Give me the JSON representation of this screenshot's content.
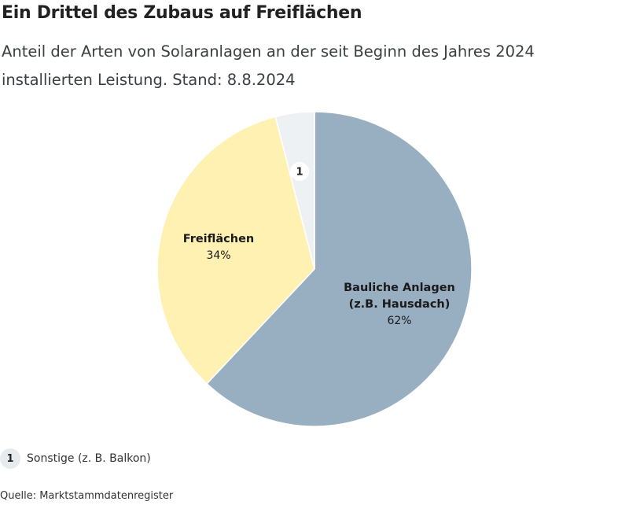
{
  "title": "Ein Drittel des Zubaus auf Freiflächen",
  "subtitle": {
    "line1": "Anteil der Arten von Solaranlagen an der seit Beginn des Jahres 2024",
    "line2": "installierten Leistung. Stand: 8.8.2024"
  },
  "chart_data": {
    "type": "pie",
    "slices": [
      {
        "key": "bauliche",
        "label_lines": [
          "Bauliche Anlagen",
          "(z.B. Hausdach)"
        ],
        "value": 62,
        "display": "62%",
        "color": "#98aec1"
      },
      {
        "key": "freiflaechen",
        "label_lines": [
          "Freiflächen"
        ],
        "value": 34,
        "display": "34%",
        "color": "#fff1b2"
      },
      {
        "key": "sonstige",
        "marker": "1",
        "value": 4,
        "color": "#edf1f4"
      }
    ]
  },
  "legend": {
    "marker": "1",
    "text": "Sonstige (z. B. Balkon)"
  },
  "source": "Quelle: Marktstammdatenregister"
}
